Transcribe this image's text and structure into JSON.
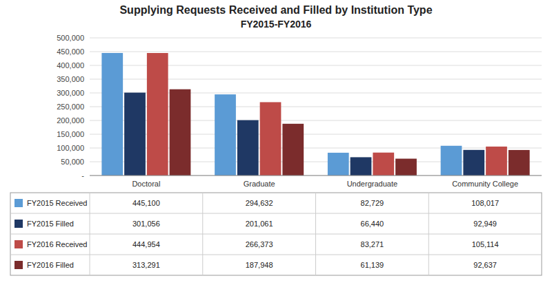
{
  "chart_data": {
    "type": "bar",
    "title": "Supplying Requests Received and Filled by Institution Type",
    "subtitle": "FY2015-FY2016",
    "categories": [
      "Doctoral",
      "Graduate",
      "Undergraduate",
      "Community College"
    ],
    "series": [
      {
        "name": "FY2015 Received",
        "color": "#5B9BD5",
        "values": [
          445100,
          294632,
          82729,
          108017
        ],
        "value_labels": [
          "445,100",
          "294,632",
          "82,729",
          "108,017"
        ]
      },
      {
        "name": "FY2015 Filled",
        "color": "#1F3864",
        "values": [
          301056,
          201061,
          66440,
          92949
        ],
        "value_labels": [
          "301,056",
          "201,061",
          "66,440",
          "92,949"
        ]
      },
      {
        "name": "FY2016 Received",
        "color": "#BE4B48",
        "values": [
          444954,
          266373,
          83271,
          105114
        ],
        "value_labels": [
          "444,954",
          "266,373",
          "83,271",
          "105,114"
        ]
      },
      {
        "name": "FY2016 Filled",
        "color": "#7B2C2C",
        "values": [
          313291,
          187948,
          61139,
          92637
        ],
        "value_labels": [
          "313,291",
          "187,948",
          "61,139",
          "92,637"
        ]
      }
    ],
    "ylim": [
      0,
      500000
    ],
    "yticks": [
      {
        "value": 0,
        "label": "-"
      },
      {
        "value": 50000,
        "label": "50,000"
      },
      {
        "value": 100000,
        "label": "100,000"
      },
      {
        "value": 150000,
        "label": "150,000"
      },
      {
        "value": 200000,
        "label": "200,000"
      },
      {
        "value": 250000,
        "label": "250,000"
      },
      {
        "value": 300000,
        "label": "300,000"
      },
      {
        "value": 350000,
        "label": "350,000"
      },
      {
        "value": 400000,
        "label": "400,000"
      },
      {
        "value": 450000,
        "label": "450,000"
      },
      {
        "value": 500000,
        "label": "500,000"
      }
    ],
    "grid": true
  }
}
